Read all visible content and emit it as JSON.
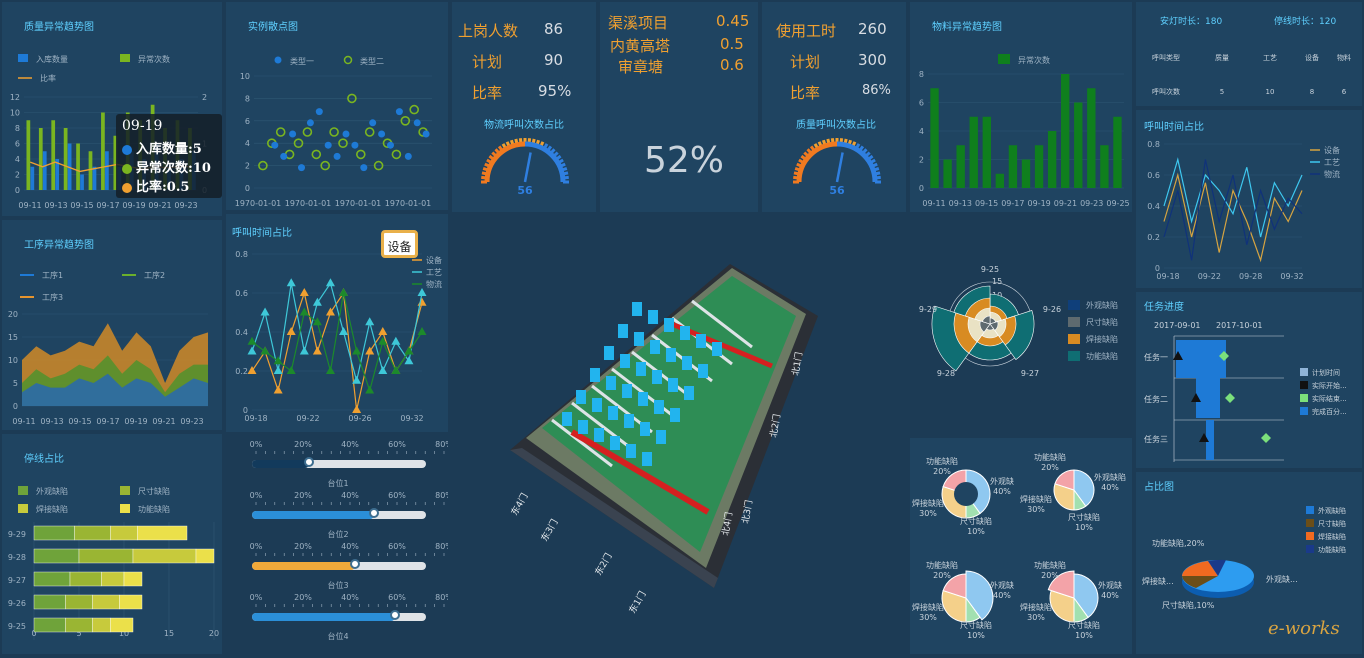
{
  "quality_trend": {
    "title": "质量异常趋势图",
    "legend": [
      "入库数量",
      "异常次数",
      "比率"
    ],
    "tooltip": {
      "date": "09-19",
      "row1": "入库数量:5",
      "row2": "异常次数:10",
      "row3": "比率:0.5"
    },
    "chart_data": {
      "type": "bar",
      "categories": [
        "09-11",
        "09-12",
        "09-13",
        "09-14",
        "09-15",
        "09-16",
        "09-17",
        "09-18",
        "09-19",
        "09-20",
        "09-21",
        "09-22",
        "09-23",
        "09-24"
      ],
      "x_tick_labels": [
        "09-11",
        "09-13",
        "09-15",
        "09-17",
        "09-19",
        "09-21",
        "09-23"
      ],
      "series": [
        {
          "name": "入库数量",
          "values": [
            3,
            5,
            4,
            6,
            2,
            3,
            5,
            3,
            5,
            4,
            6,
            3,
            4,
            5
          ]
        },
        {
          "name": "异常次数",
          "values": [
            9,
            8,
            9,
            8,
            6,
            5,
            10,
            7,
            10,
            9,
            11,
            8,
            9,
            8
          ]
        },
        {
          "name": "比率",
          "values": [
            0.6,
            0.5,
            0.6,
            0.5,
            0.4,
            0.45,
            0.5,
            0.55,
            0.5,
            0.45,
            0.5,
            0.48,
            0.5,
            0.5
          ]
        }
      ],
      "ylim": [
        0,
        12
      ],
      "y_ticks": [
        0,
        2,
        4,
        6,
        8,
        10,
        12
      ],
      "y2lim": [
        0,
        2
      ],
      "y2_ticks": [
        0,
        1,
        2
      ]
    }
  },
  "scatter": {
    "title": "实例散点图",
    "legend": [
      "类型一",
      "类型二"
    ],
    "chart_data": {
      "type": "scatter",
      "x_tick_labels": [
        "1970-01-01",
        "1970-01-01",
        "1970-01-01",
        "1970-01-01"
      ],
      "ylim": [
        0,
        10
      ],
      "y_ticks": [
        0,
        2,
        4,
        6,
        8,
        10
      ],
      "series": [
        {
          "name": "类型一",
          "points": [
            [
              0.1,
              4
            ],
            [
              0.15,
              3
            ],
            [
              0.2,
              5
            ],
            [
              0.25,
              2
            ],
            [
              0.3,
              6
            ],
            [
              0.35,
              7
            ],
            [
              0.4,
              4
            ],
            [
              0.45,
              3
            ],
            [
              0.5,
              5
            ],
            [
              0.55,
              4
            ],
            [
              0.6,
              2
            ],
            [
              0.65,
              6
            ],
            [
              0.7,
              5
            ],
            [
              0.75,
              4
            ],
            [
              0.8,
              7
            ],
            [
              0.85,
              3
            ],
            [
              0.9,
              6
            ],
            [
              0.95,
              5
            ]
          ]
        },
        {
          "name": "类型二",
          "points": [
            [
              0.05,
              2
            ],
            [
              0.1,
              4
            ],
            [
              0.15,
              5
            ],
            [
              0.2,
              3
            ],
            [
              0.25,
              4
            ],
            [
              0.3,
              5
            ],
            [
              0.35,
              3
            ],
            [
              0.4,
              2
            ],
            [
              0.45,
              5
            ],
            [
              0.5,
              4
            ],
            [
              0.55,
              8
            ],
            [
              0.6,
              3
            ],
            [
              0.65,
              5
            ],
            [
              0.7,
              2
            ],
            [
              0.75,
              4
            ],
            [
              0.8,
              3
            ],
            [
              0.85,
              6
            ],
            [
              0.9,
              7
            ],
            [
              0.95,
              5
            ]
          ]
        }
      ]
    }
  },
  "process_trend": {
    "title": "工序异常趋势图",
    "legend": [
      "工序1",
      "工序2",
      "工序3"
    ],
    "chart_data": {
      "type": "area",
      "categories": [
        "09-11",
        "09-12",
        "09-13",
        "09-14",
        "09-15",
        "09-16",
        "09-17",
        "09-18",
        "09-19",
        "09-20",
        "09-21",
        "09-22",
        "09-23",
        "09-24"
      ],
      "x_tick_labels": [
        "09-11",
        "09-13",
        "09-15",
        "09-17",
        "09-19",
        "09-21",
        "09-23"
      ],
      "ylim": [
        0,
        20
      ],
      "y_ticks": [
        0,
        5,
        10,
        15,
        20
      ],
      "series": [
        {
          "name": "工序3",
          "values": [
            10,
            13,
            11,
            12,
            14,
            13,
            18,
            12,
            16,
            13,
            5,
            12,
            15,
            16
          ]
        },
        {
          "name": "工序2",
          "values": [
            5,
            8,
            6,
            7,
            9,
            8,
            11,
            7,
            10,
            8,
            3,
            7,
            9,
            9
          ]
        },
        {
          "name": "工序1",
          "values": [
            3,
            5,
            4,
            4,
            6,
            5,
            7,
            4,
            6,
            5,
            2,
            4,
            6,
            5
          ]
        }
      ]
    }
  },
  "call_time1": {
    "title": "呼叫时间占比",
    "legend": [
      "设备",
      "工艺",
      "物流"
    ],
    "tooltip": "设备",
    "chart_data": {
      "type": "line",
      "x_tick_labels": [
        "09-18",
        "09-22",
        "09-26",
        "09-32"
      ],
      "ylim": [
        0,
        0.8
      ],
      "y_ticks": [
        0,
        0.2,
        0.4,
        0.6,
        0.8
      ],
      "series": [
        {
          "name": "设备",
          "values": [
            0.2,
            0.3,
            0.1,
            0.4,
            0.6,
            0.3,
            0.5,
            0.6,
            0.0,
            0.3,
            0.4,
            0.2,
            0.3,
            0.55
          ]
        },
        {
          "name": "工艺",
          "values": [
            0.3,
            0.5,
            0.2,
            0.65,
            0.3,
            0.55,
            0.65,
            0.4,
            0.15,
            0.45,
            0.2,
            0.35,
            0.25,
            0.6
          ]
        },
        {
          "name": "物流",
          "values": [
            0.35,
            0.3,
            0.25,
            0.2,
            0.5,
            0.45,
            0.2,
            0.6,
            0.3,
            0.1,
            0.35,
            0.2,
            0.3,
            0.4
          ]
        }
      ]
    }
  },
  "kpi_left": {
    "rows": [
      [
        "上岗人数",
        "86"
      ],
      [
        "计划",
        "90"
      ],
      [
        "比率",
        "95%"
      ]
    ],
    "gauge_title": "物流呼叫次数占比",
    "gauge_value": "56"
  },
  "kpi_mid": {
    "rows": [
      [
        "渠溪项目",
        "0.45"
      ],
      [
        "内黄高塔",
        "0.5"
      ],
      [
        "审章塘",
        "0.6"
      ]
    ],
    "big_percent": "52%"
  },
  "kpi_right": {
    "rows": [
      [
        "使用工时",
        "260"
      ],
      [
        "计划",
        "300"
      ],
      [
        "比率",
        "86%"
      ]
    ],
    "gauge_title": "质量呼叫次数占比",
    "gauge_value": "56"
  },
  "material_trend": {
    "title": "物料异常趋势图",
    "legend": [
      "异常次数"
    ],
    "chart_data": {
      "type": "bar",
      "categories": [
        "09-11",
        "09-12",
        "09-13",
        "09-14",
        "09-15",
        "09-16",
        "09-17",
        "09-18",
        "09-19",
        "09-20",
        "09-21",
        "09-22",
        "09-23",
        "09-24",
        "09-25"
      ],
      "x_tick_labels": [
        "09-11",
        "09-13",
        "09-15",
        "09-17",
        "09-19",
        "09-21",
        "09-23",
        "09-25"
      ],
      "values": [
        7,
        2,
        3,
        5,
        5,
        1,
        3,
        2,
        3,
        4,
        8,
        6,
        7,
        3,
        5
      ],
      "ylim": [
        0,
        8
      ],
      "y_ticks": [
        0,
        2,
        4,
        6,
        8
      ]
    }
  },
  "status_table": {
    "safe_label": "安灯时长：180",
    "stop_label": "停线时长：120",
    "headers": [
      "呼叫类型",
      "质量",
      "工艺",
      "设备",
      "物料"
    ],
    "row": [
      "呼叫次数",
      "5",
      "10",
      "8",
      "6"
    ]
  },
  "call_time2": {
    "title": "呼叫时间占比",
    "legend": [
      "设备",
      "工艺",
      "物流"
    ],
    "chart_data": {
      "type": "line",
      "x_tick_labels": [
        "09-18",
        "09-22",
        "09-28",
        "09-32"
      ],
      "ylim": [
        0,
        0.8
      ],
      "y_ticks": [
        0,
        0.2,
        0.4,
        0.6,
        0.8
      ],
      "series": [
        {
          "name": "设备",
          "values": [
            0.3,
            0.6,
            0.2,
            0.55,
            0.1,
            0.5,
            0.3,
            0.05,
            0.45,
            0.3,
            0.5
          ]
        },
        {
          "name": "工艺",
          "values": [
            0.4,
            0.7,
            0.3,
            0.6,
            0.5,
            0.35,
            0.65,
            0.2,
            0.55,
            0.4,
            0.6
          ]
        },
        {
          "name": "物流",
          "values": [
            0.2,
            0.5,
            0.05,
            0.7,
            0.3,
            0.6,
            0.15,
            0.5,
            0.25,
            0.45,
            0.35
          ]
        }
      ]
    }
  },
  "rose": {
    "labels": [
      "9-25",
      "9-26",
      "9-27",
      "9-28",
      "9-29"
    ],
    "rings": [
      "5",
      "10",
      "15"
    ],
    "legend": [
      "外观缺陷",
      "尺寸缺陷",
      "焊接缺陷",
      "功能缺陷"
    ]
  },
  "pies": [
    {
      "labels": [
        "功能缺陷",
        "20%",
        "外观缺",
        "40%",
        "焊接缺陷",
        "30%",
        "尺寸缺陷",
        "10%"
      ]
    },
    {
      "labels": [
        "功能缺陷",
        "20%",
        "外观缺陷",
        "40%",
        "焊接缺陷",
        "30%",
        "尺寸缺陷",
        "10%"
      ]
    },
    {
      "labels": [
        "功能缺陷",
        "20%",
        "外观缺",
        "40%",
        "焊接缺陷",
        "30%",
        "尺寸缺陷",
        "10%"
      ]
    },
    {
      "labels": [
        "功能缺陷",
        "20%",
        "外观缺",
        "40%",
        "焊接缺陷",
        "30%",
        "尺寸缺陷",
        "10%"
      ]
    }
  ],
  "gantt": {
    "title": "任务进度",
    "dates": [
      "2017-09-01",
      "2017-10-01"
    ],
    "tasks": [
      "任务一",
      "任务二",
      "任务三"
    ],
    "legend": [
      "计划时间",
      "实际开始...",
      "实际结束...",
      "完成百分..."
    ]
  },
  "share_pie": {
    "title": "占比图",
    "labels": [
      "功能缺陷,20%",
      "焊接缺...",
      "外观缺...",
      "尺寸缺陷,10%"
    ],
    "legend": [
      "外观缺陷",
      "尺寸缺陷",
      "焊接缺陷",
      "功能缺陷"
    ]
  },
  "stop_line": {
    "title": "停线占比",
    "legend": [
      "外观缺陷",
      "尺寸缺陷",
      "焊接缺陷",
      "功能缺陷"
    ],
    "chart_data": {
      "type": "bar",
      "categories": [
        "9-29",
        "9-28",
        "9-27",
        "9-26",
        "9-25"
      ],
      "series": [
        {
          "name": "外观缺陷",
          "values": [
            4.5,
            5,
            4,
            3.5,
            3.5
          ]
        },
        {
          "name": "尺寸缺陷",
          "values": [
            4,
            6,
            3.5,
            3,
            3
          ]
        },
        {
          "name": "焊接缺陷",
          "values": [
            3,
            7,
            2.5,
            3,
            2
          ]
        },
        {
          "name": "功能缺陷",
          "values": [
            5.5,
            2,
            2,
            2.5,
            2.5
          ]
        }
      ],
      "x_ticks": [
        "0",
        "5",
        "10",
        "15",
        "20"
      ]
    }
  },
  "sliders": {
    "ticks": [
      "0%",
      "20%",
      "40%",
      "60%",
      "80%"
    ],
    "items": [
      {
        "label": "台位1",
        "value": 0.33,
        "color": "#123a5c"
      },
      {
        "label": "台位2",
        "value": 0.7,
        "color": "#2b8fd8"
      },
      {
        "label": "台位3",
        "value": 0.59,
        "color": "#f0a93a"
      },
      {
        "label": "台位4",
        "value": 0.82,
        "color": "#2b8fd8"
      }
    ]
  },
  "map_labels": [
    "东4门",
    "东3门",
    "东2门",
    "东1门",
    "北4门",
    "北3门",
    "北2门",
    "北1门"
  ],
  "watermark": "e-works"
}
